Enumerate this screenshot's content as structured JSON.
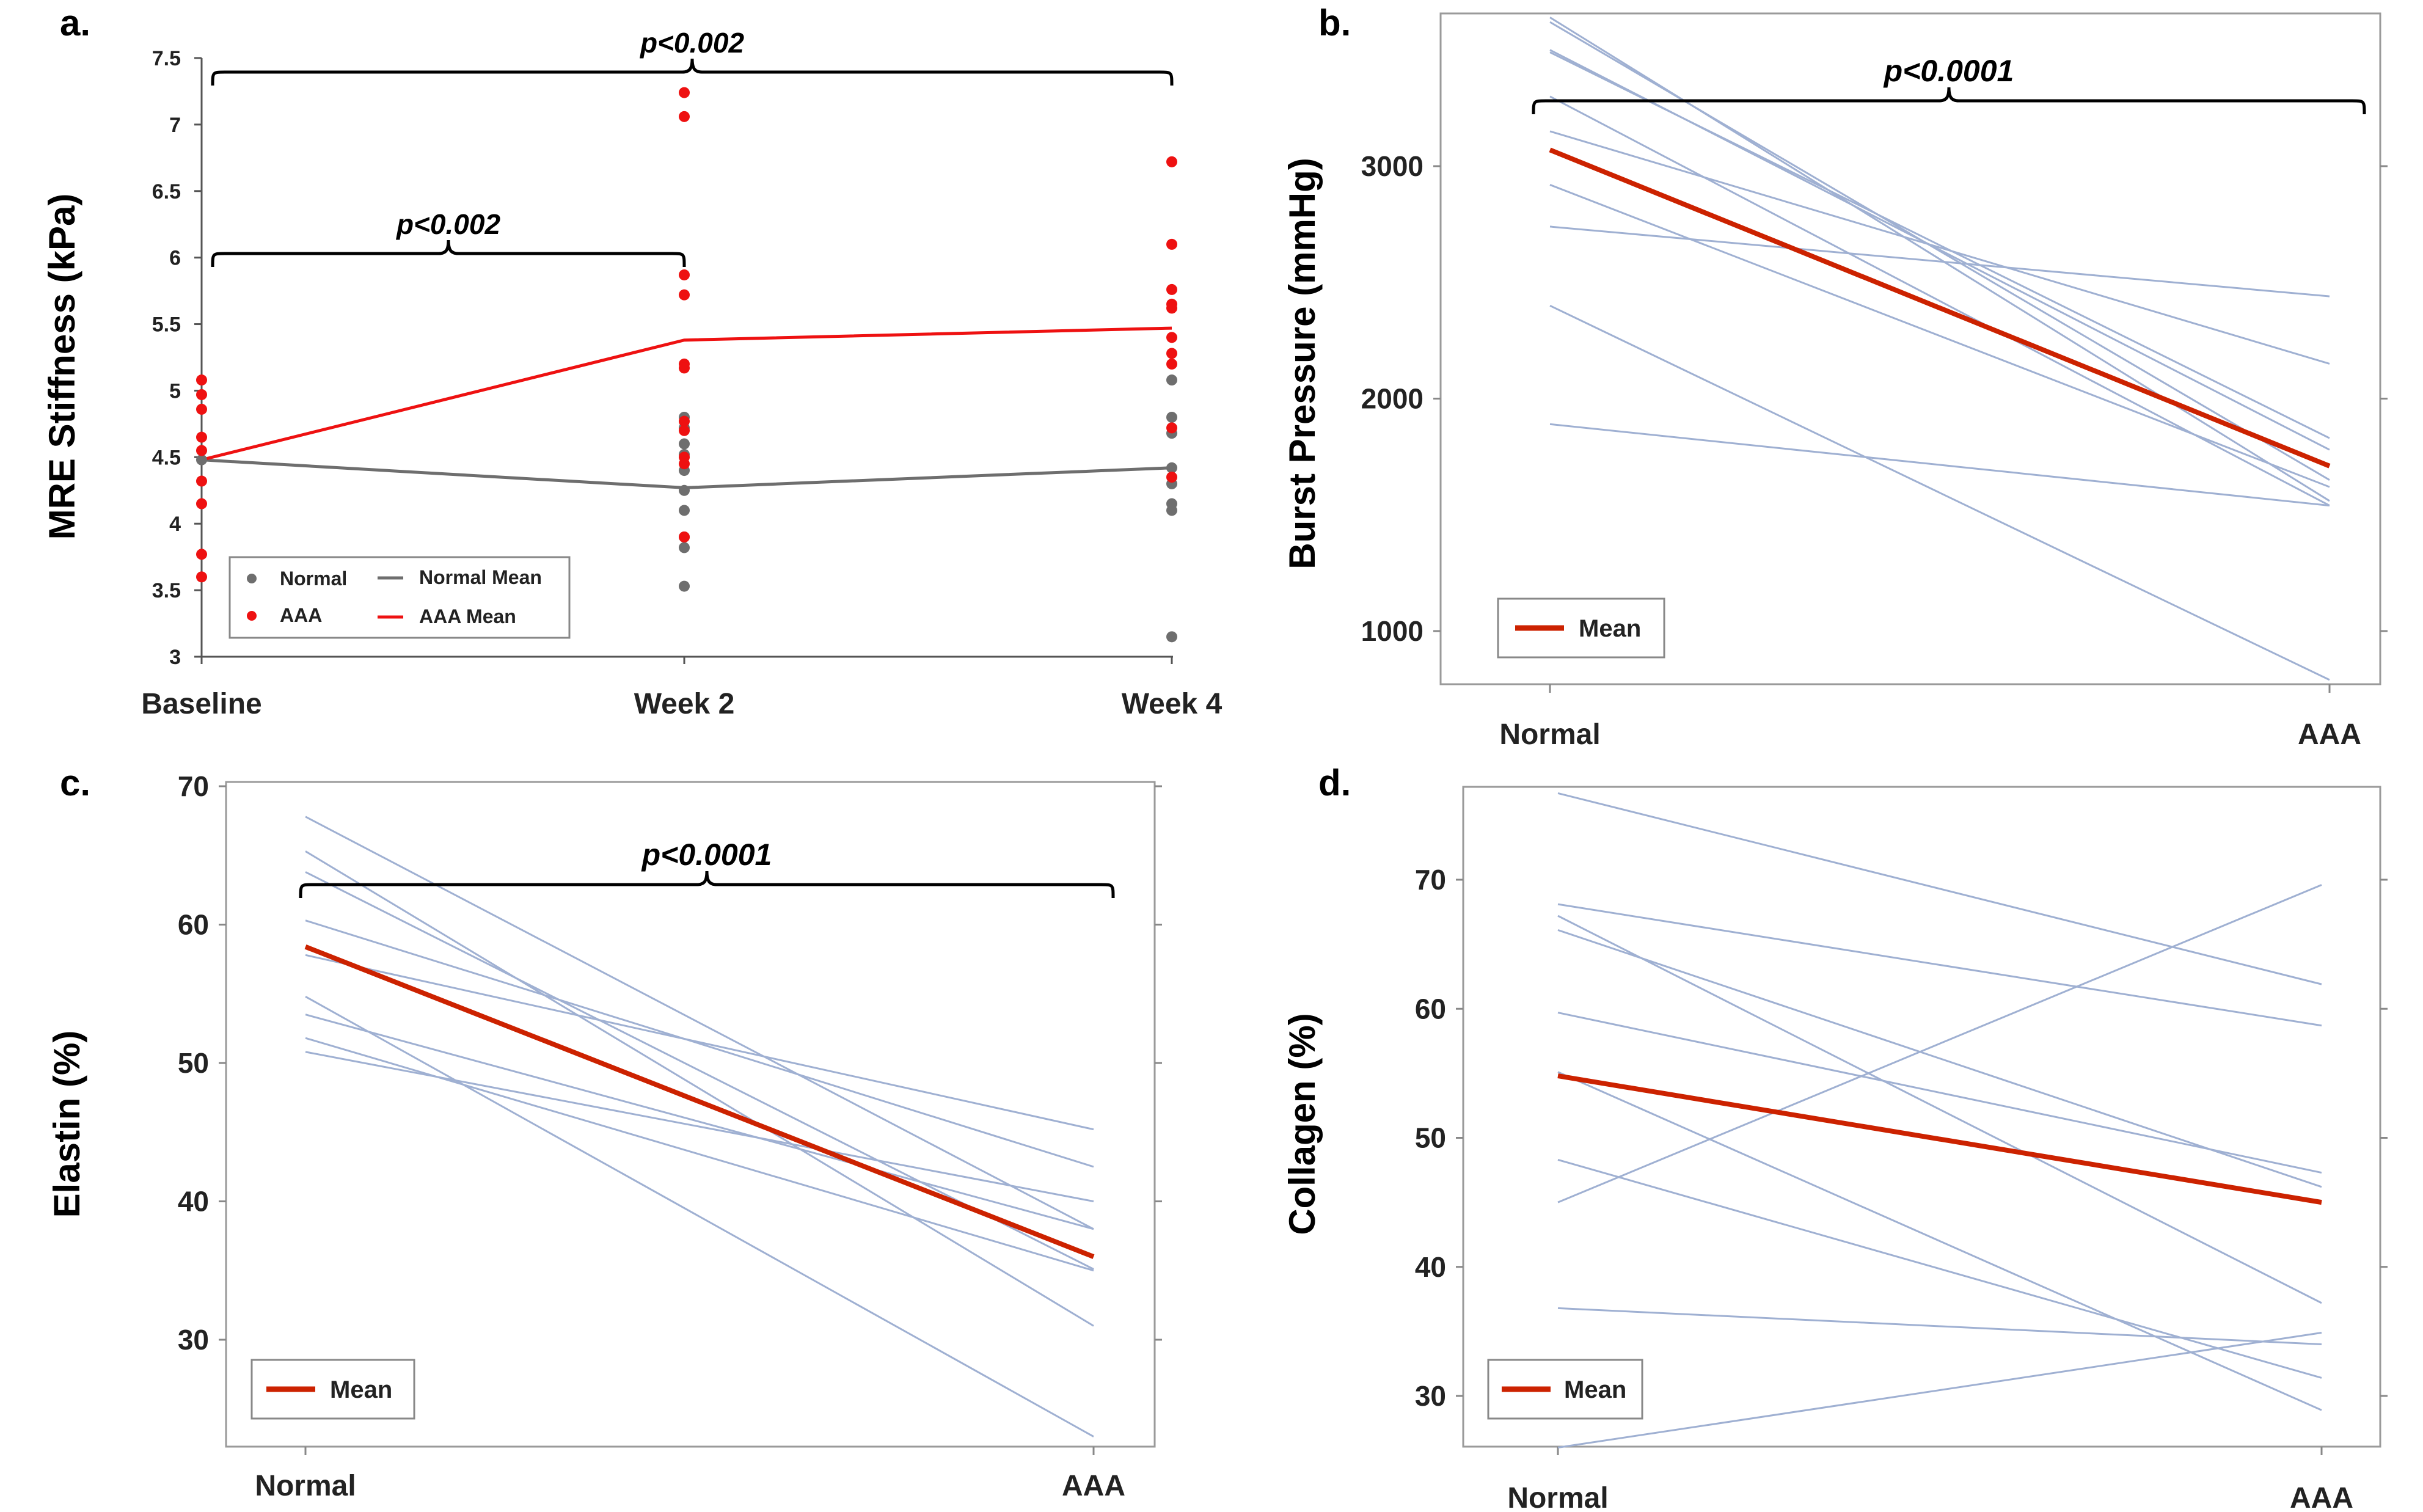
{
  "figure": {
    "panels": [
      "a.",
      "b.",
      "c.",
      "d."
    ]
  },
  "colors": {
    "normal": "#6e6e6e",
    "aaa": "#ee1111",
    "mean": "#cc2200",
    "individual": "#9fb0d2"
  },
  "chart_data": [
    {
      "panel": "a.",
      "type": "scatter",
      "ylabel": "MRE Stiffness (kPa)",
      "xlabel": "",
      "categories": [
        "Baseline",
        "Week 2",
        "Week 4"
      ],
      "ylim": [
        3,
        7.5
      ],
      "yticks": [
        "3",
        "3.5",
        "4",
        "4.5",
        "5",
        "5.5",
        "6",
        "6.5",
        "7",
        "7.5"
      ],
      "series": [
        {
          "name": "Normal",
          "kind": "points",
          "points": [
            [
              1,
              4.48
            ],
            [
              2,
              4.8
            ],
            [
              2,
              4.72
            ],
            [
              2,
              4.6
            ],
            [
              2,
              4.52
            ],
            [
              2,
              4.4
            ],
            [
              2,
              4.25
            ],
            [
              2,
              4.1
            ],
            [
              2,
              3.9
            ],
            [
              2,
              3.82
            ],
            [
              2,
              3.53
            ],
            [
              3,
              5.08
            ],
            [
              3,
              4.8
            ],
            [
              3,
              4.68
            ],
            [
              3,
              4.42
            ],
            [
              3,
              4.3
            ],
            [
              3,
              4.15
            ],
            [
              3,
              4.1
            ],
            [
              3,
              3.15
            ]
          ]
        },
        {
          "name": "AAA",
          "kind": "points",
          "points": [
            [
              1,
              5.08
            ],
            [
              1,
              4.97
            ],
            [
              1,
              4.86
            ],
            [
              1,
              4.65
            ],
            [
              1,
              4.55
            ],
            [
              1,
              4.32
            ],
            [
              1,
              4.15
            ],
            [
              1,
              3.77
            ],
            [
              1,
              3.6
            ],
            [
              2,
              7.24
            ],
            [
              2,
              7.06
            ],
            [
              2,
              5.87
            ],
            [
              2,
              5.72
            ],
            [
              2,
              5.2
            ],
            [
              2,
              5.17
            ],
            [
              2,
              4.77
            ],
            [
              2,
              4.7
            ],
            [
              2,
              4.5
            ],
            [
              2,
              4.45
            ],
            [
              2,
              3.9
            ],
            [
              3,
              6.72
            ],
            [
              3,
              6.1
            ],
            [
              3,
              5.76
            ],
            [
              3,
              5.65
            ],
            [
              3,
              5.62
            ],
            [
              3,
              5.4
            ],
            [
              3,
              5.28
            ],
            [
              3,
              5.2
            ],
            [
              3,
              4.72
            ],
            [
              3,
              4.35
            ]
          ]
        },
        {
          "name": "Normal Mean",
          "kind": "line",
          "values": [
            4.48,
            4.27,
            4.42
          ]
        },
        {
          "name": "AAA Mean",
          "kind": "line",
          "values": [
            4.48,
            5.38,
            5.47
          ]
        }
      ],
      "legend": [
        "Normal",
        "Normal Mean",
        "AAA",
        "AAA Mean"
      ],
      "legend_position": "bottom-left",
      "annotations": [
        {
          "text": "p<0.002",
          "from": "Baseline",
          "to": "Week 2"
        },
        {
          "text": "p<0.002",
          "from": "Baseline",
          "to": "Week 4"
        }
      ]
    },
    {
      "panel": "b.",
      "type": "line",
      "ylabel": "Burst Pressure (mmHg)",
      "categories": [
        "Normal",
        "AAA"
      ],
      "ylim": [
        800,
        3650
      ],
      "yticks": [
        "1000",
        "2000",
        "3000"
      ],
      "series": [
        {
          "name": "individual",
          "values": [
            3640,
            1560
          ]
        },
        {
          "name": "individual",
          "values": [
            3620,
            1650
          ]
        },
        {
          "name": "individual",
          "values": [
            3500,
            1780
          ]
        },
        {
          "name": "individual",
          "values": [
            3490,
            1830
          ]
        },
        {
          "name": "individual",
          "values": [
            3300,
            1540
          ]
        },
        {
          "name": "individual",
          "values": [
            3150,
            2150
          ]
        },
        {
          "name": "individual",
          "values": [
            2920,
            1620
          ]
        },
        {
          "name": "individual",
          "values": [
            2740,
            2440
          ]
        },
        {
          "name": "individual",
          "values": [
            2400,
            790
          ]
        },
        {
          "name": "individual",
          "values": [
            1890,
            1540
          ]
        },
        {
          "name": "Mean",
          "values": [
            3070,
            1710
          ]
        }
      ],
      "legend": [
        "Mean"
      ],
      "legend_position": "bottom-left",
      "annotations": [
        {
          "text": "p<0.0001",
          "from": "Normal",
          "to": "AAA"
        }
      ]
    },
    {
      "panel": "c.",
      "type": "line",
      "ylabel": "Elastin (%)",
      "categories": [
        "Normal",
        "AAA"
      ],
      "ylim": [
        22,
        70
      ],
      "yticks": [
        "30",
        "40",
        "50",
        "60",
        "70"
      ],
      "series": [
        {
          "name": "individual",
          "values": [
            67.8,
            38.0
          ]
        },
        {
          "name": "individual",
          "values": [
            65.3,
            31.0
          ]
        },
        {
          "name": "individual",
          "values": [
            63.8,
            35.1
          ]
        },
        {
          "name": "individual",
          "values": [
            60.3,
            42.5
          ]
        },
        {
          "name": "individual",
          "values": [
            57.8,
            45.2
          ]
        },
        {
          "name": "individual",
          "values": [
            54.8,
            23.0
          ]
        },
        {
          "name": "individual",
          "values": [
            53.5,
            38.0
          ]
        },
        {
          "name": "individual",
          "values": [
            51.8,
            35.0
          ]
        },
        {
          "name": "individual",
          "values": [
            50.8,
            40.0
          ]
        },
        {
          "name": "Mean",
          "values": [
            58.4,
            36.0
          ]
        }
      ],
      "legend": [
        "Mean"
      ],
      "legend_position": "bottom-left",
      "annotations": [
        {
          "text": "p<0.0001",
          "from": "Normal",
          "to": "AAA"
        }
      ]
    },
    {
      "panel": "d.",
      "type": "line",
      "ylabel": "Collagen (%)",
      "categories": [
        "Normal",
        "AAA"
      ],
      "ylim": [
        25,
        77
      ],
      "yticks": [
        "30",
        "40",
        "50",
        "60",
        "70"
      ],
      "series": [
        {
          "name": "individual",
          "values": [
            76.7,
            61.9
          ]
        },
        {
          "name": "individual",
          "values": [
            68.1,
            58.7
          ]
        },
        {
          "name": "individual",
          "values": [
            67.2,
            37.2
          ]
        },
        {
          "name": "individual",
          "values": [
            66.1,
            46.2
          ]
        },
        {
          "name": "individual",
          "values": [
            59.7,
            47.3
          ]
        },
        {
          "name": "individual",
          "values": [
            55.1,
            28.9
          ]
        },
        {
          "name": "individual",
          "values": [
            48.3,
            31.4
          ]
        },
        {
          "name": "individual",
          "values": [
            45.0,
            69.6
          ]
        },
        {
          "name": "individual",
          "values": [
            36.8,
            34.0
          ]
        },
        {
          "name": "individual",
          "values": [
            26.0,
            34.9
          ]
        },
        {
          "name": "Mean",
          "values": [
            54.8,
            45.0
          ]
        }
      ],
      "legend": [
        "Mean"
      ],
      "legend_position": "bottom-left",
      "annotations": []
    }
  ]
}
